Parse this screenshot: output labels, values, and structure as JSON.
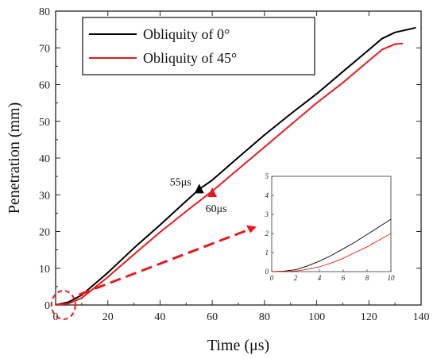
{
  "chart_data": {
    "type": "line",
    "xlabel": "Time (μs)",
    "ylabel": "Penetration (mm)",
    "xlim": [
      0,
      140
    ],
    "ylim": [
      0,
      80
    ],
    "xticks": [
      "0",
      "20",
      "40",
      "60",
      "80",
      "100",
      "120",
      "140"
    ],
    "yticks": [
      "0",
      "10",
      "20",
      "30",
      "40",
      "50",
      "60",
      "70",
      "80"
    ],
    "grid": false,
    "legend_position": "top-left",
    "series": [
      {
        "name": "Obliquity of 0°",
        "color": "#000000",
        "x": [
          0,
          5,
          10,
          20,
          30,
          40,
          50,
          55,
          60,
          70,
          80,
          90,
          100,
          110,
          120,
          125,
          130,
          135,
          138
        ],
        "y": [
          0,
          0.8,
          2.7,
          8.8,
          15.5,
          21.8,
          28.3,
          31.5,
          34,
          40.2,
          46.3,
          52.0,
          57.5,
          63.5,
          69.5,
          72.5,
          74.2,
          75.0,
          75.5
        ]
      },
      {
        "name": "Obliquity of 45°",
        "color": "#e8191c",
        "x": [
          0,
          5,
          10,
          20,
          30,
          40,
          50,
          60,
          70,
          80,
          90,
          100,
          110,
          120,
          125,
          130,
          133
        ],
        "y": [
          0,
          0.4,
          1.9,
          7.6,
          13.8,
          19.8,
          25.5,
          31.0,
          37.0,
          43.0,
          49.0,
          55.0,
          60.5,
          66.5,
          69.5,
          71.0,
          71.2
        ]
      }
    ],
    "annotations": [
      {
        "text": "55μs",
        "x": 55,
        "y": 31.5,
        "series": 0
      },
      {
        "text": "60μs",
        "x": 60,
        "y": 30.5,
        "series": 1
      }
    ],
    "inset": {
      "xlim": [
        0,
        10
      ],
      "ylim": [
        0,
        5
      ],
      "xticks": [
        "0",
        "2",
        "4",
        "6",
        "8",
        "10"
      ],
      "yticks": [
        "0",
        "1",
        "2",
        "3",
        "4",
        "5"
      ],
      "series": [
        {
          "color": "#000000",
          "x": [
            0,
            1,
            2,
            3,
            4,
            5,
            6,
            7,
            8,
            9,
            10
          ],
          "y": [
            0,
            0.02,
            0.1,
            0.3,
            0.55,
            0.85,
            1.2,
            1.55,
            1.95,
            2.35,
            2.75
          ]
        },
        {
          "color": "#e8191c",
          "x": [
            0,
            1,
            2,
            3,
            4,
            5,
            6,
            7,
            8,
            9,
            10
          ],
          "y": [
            0,
            0,
            0.03,
            0.12,
            0.25,
            0.45,
            0.7,
            1.0,
            1.3,
            1.65,
            2.0
          ]
        }
      ]
    }
  }
}
